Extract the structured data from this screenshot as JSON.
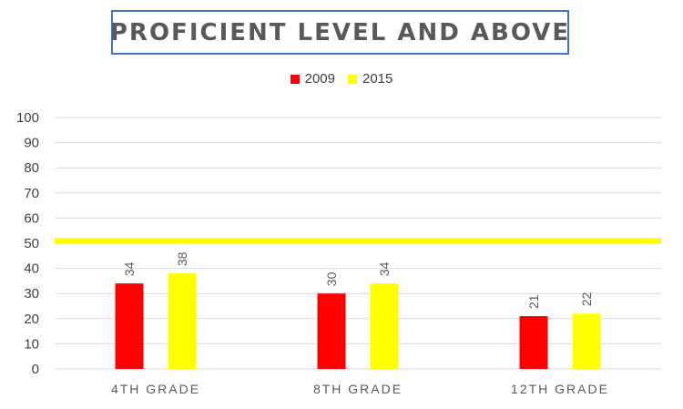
{
  "chart_data": {
    "type": "bar",
    "title": "PROFICIENT LEVEL AND ABOVE",
    "categories": [
      "4TH GRADE",
      "8TH GRADE",
      "12TH GRADE"
    ],
    "series": [
      {
        "name": "2009",
        "color": "#ff0000",
        "values": [
          34,
          30,
          21
        ]
      },
      {
        "name": "2015",
        "color": "#ffff00",
        "values": [
          38,
          34,
          22
        ]
      }
    ],
    "ylim": [
      0,
      100
    ],
    "yticks": [
      0,
      10,
      20,
      30,
      40,
      50,
      60,
      70,
      80,
      90,
      100
    ],
    "reference_line": {
      "value": 51,
      "color": "#ffff00"
    },
    "grid": true,
    "legend_position": "top-center",
    "data_labels": true
  }
}
